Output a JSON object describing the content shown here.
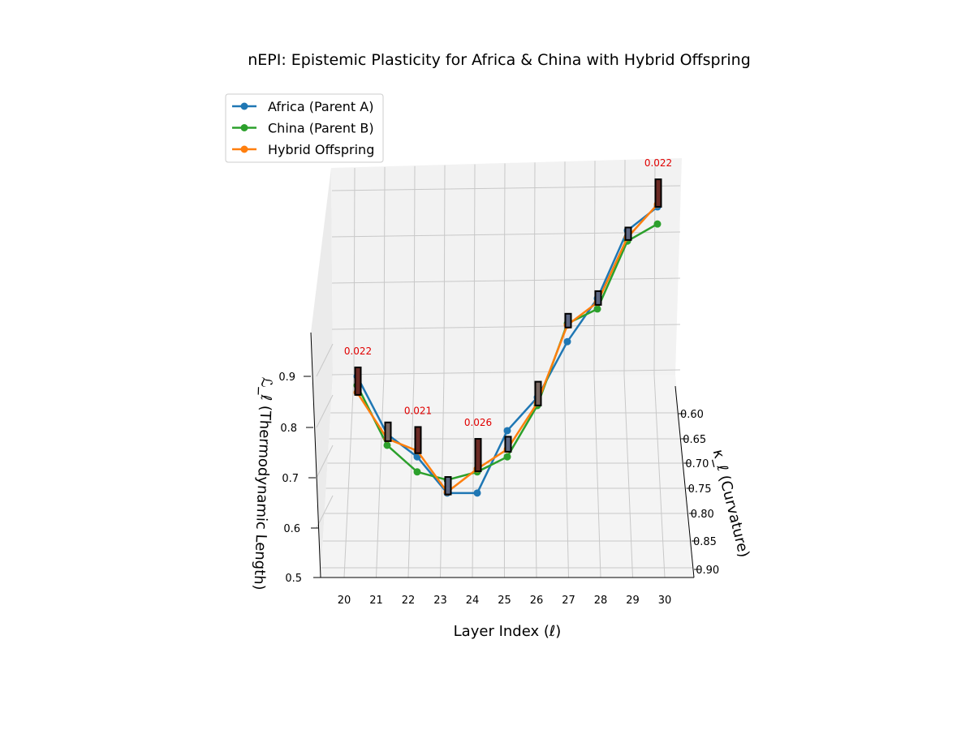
{
  "chart_data": {
    "type": "line",
    "projection": "3d",
    "title": "nEPI: Epistemic Plasticity for Africa & China with Hybrid Offspring",
    "xlabel": "Layer Index (ℓ)",
    "ylabel": "κ_ℓ (Curvature)",
    "zlabel": "ℒ_ℓ (Thermodynamic Length)",
    "x": [
      20,
      21,
      22,
      23,
      24,
      25,
      26,
      27,
      28,
      29,
      30
    ],
    "x_ticks": [
      "20",
      "21",
      "22",
      "23",
      "24",
      "25",
      "26",
      "27",
      "28",
      "29",
      "30"
    ],
    "y_ticks": [
      "0.60",
      "0.65",
      "0.70",
      "0.75",
      "0.80",
      "0.85",
      "0.90"
    ],
    "z_ticks": [
      "0.5",
      "0.6",
      "0.7",
      "0.8",
      "0.9"
    ],
    "zlim": [
      0.5,
      0.9
    ],
    "legend_position": "top-left",
    "grid": true,
    "note": "values are approximate projected heights read from the 3D view",
    "series": [
      {
        "name": "Africa (Parent A)",
        "color": "#1f77b4",
        "values": [
          0.9,
          0.785,
          0.74,
          0.668,
          0.668,
          0.792,
          0.858,
          0.969,
          1.055,
          1.19,
          1.237
        ]
      },
      {
        "name": "China (Parent B)",
        "color": "#2ca02c",
        "values": [
          0.882,
          0.763,
          0.71,
          0.694,
          0.71,
          0.74,
          0.842,
          1.005,
          1.034,
          1.169,
          1.203
        ]
      },
      {
        "name": "Hybrid Offspring",
        "color": "#ff7f0e",
        "values": [
          0.868,
          0.776,
          0.752,
          0.67,
          0.716,
          0.755,
          0.847,
          1.002,
          1.047,
          1.176,
          1.242
        ]
      }
    ],
    "divergence_bars": {
      "values": [
        0.022,
        0.015,
        0.021,
        0.014,
        0.026,
        0.012,
        0.019,
        0.011,
        0.011,
        0.01,
        0.022
      ],
      "labels": [
        {
          "layer": 20,
          "text": "0.022"
        },
        {
          "layer": 22,
          "text": "0.021"
        },
        {
          "layer": 24,
          "text": "0.026"
        },
        {
          "layer": 30,
          "text": "0.022"
        }
      ],
      "label_color": "#e00000"
    }
  }
}
